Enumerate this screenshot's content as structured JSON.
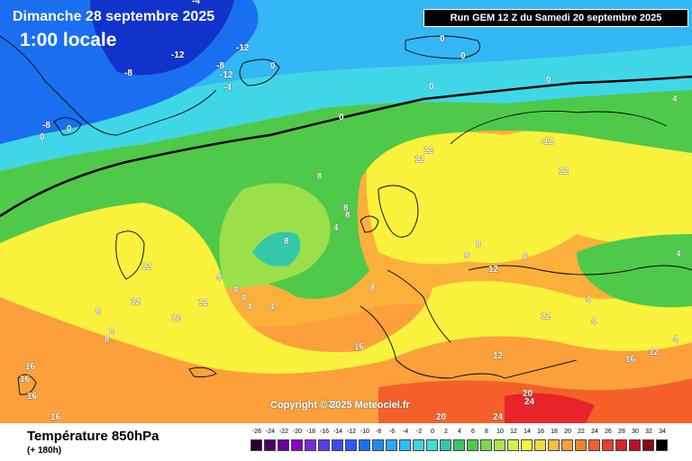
{
  "header": {
    "date_label": "Dimanche 28 septembre 2025",
    "time_label": "1:00 locale",
    "run_label": "Run GEM 12 Z du Samedi 20 septembre 2025"
  },
  "map": {
    "copyright": "Copyright © 2025 Meteociel.fr",
    "contour_labels": [
      "-12",
      "-8",
      "-12",
      "-8",
      "-12",
      "-4",
      "-4",
      "0",
      "0",
      "0",
      "0",
      "0",
      "0",
      "-8",
      "0",
      "0",
      "12",
      "12",
      "8",
      "8",
      "8",
      "4",
      "4",
      "4",
      "4",
      "4",
      "8",
      "4",
      "8",
      "12",
      "12",
      "8",
      "8",
      "8",
      "12",
      "12",
      "16",
      "16",
      "16",
      "16",
      "20",
      "16",
      "24",
      "20",
      "20",
      "24",
      "16",
      "12",
      "12",
      "-12",
      "12",
      "8",
      "8",
      "12",
      "8",
      "12",
      "4",
      "4",
      "4",
      "4",
      "4"
    ],
    "colors": {
      "deep_blue": "#1133cc",
      "mid_blue": "#1a6ff0",
      "light_blue": "#33b7f5",
      "cyan": "#3fd7e8",
      "teal": "#33c9a8",
      "green": "#4fc94a",
      "light_green": "#9be04a",
      "yellow_green": "#d9f04a",
      "yellow": "#fbf23e",
      "orange": "#fbb03b",
      "red_orange": "#f5602a",
      "red": "#e8232a",
      "line_color": "#000000"
    }
  },
  "footer": {
    "title": "Température 850hPa",
    "subtitle": "(+ 180h)",
    "scale_ticks": [
      "-26",
      "-24",
      "-22",
      "-20",
      "-18",
      "-16",
      "-14",
      "-12",
      "-10",
      "-8",
      "-6",
      "-4",
      "-2",
      "0",
      "2",
      "4",
      "6",
      "8",
      "10",
      "12",
      "14",
      "16",
      "18",
      "20",
      "22",
      "24",
      "26",
      "28",
      "30",
      "32",
      "34"
    ],
    "scale_colors": [
      "#2a0033",
      "#4a0066",
      "#6a0099",
      "#8a00cc",
      "#7a2ad9",
      "#5a3ce6",
      "#3a4cf0",
      "#2a5cf5",
      "#1a70f5",
      "#1e8cf5",
      "#2aa6f5",
      "#33bdf5",
      "#3fd4ec",
      "#3fe0d4",
      "#33c9a8",
      "#3ac46a",
      "#4fc94a",
      "#7dd94a",
      "#a8e64a",
      "#d9f04a",
      "#fbf23e",
      "#fbd83b",
      "#fbbd3b",
      "#fba03b",
      "#f5802a",
      "#f5602a",
      "#e8402a",
      "#d8232a",
      "#b8102a",
      "#8a0a1a",
      "#000000"
    ]
  }
}
